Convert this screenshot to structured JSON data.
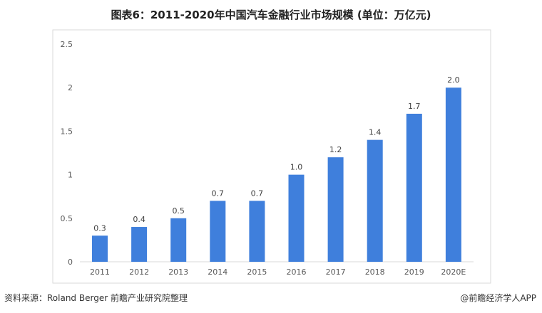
{
  "chart_data": {
    "type": "bar",
    "title": "图表6：2011-2020年中国汽车金融行业市场规模 (单位：万亿元)",
    "categories": [
      "2011",
      "2012",
      "2013",
      "2014",
      "2015",
      "2016",
      "2017",
      "2018",
      "2019",
      "2020E"
    ],
    "values": [
      0.3,
      0.4,
      0.5,
      0.7,
      0.7,
      1.0,
      1.2,
      1.4,
      1.7,
      2.0
    ],
    "data_labels": [
      "0.3",
      "0.4",
      "0.5",
      "0.7",
      "0.7",
      "1.0",
      "1.2",
      "1.4",
      "1.7",
      "2.0"
    ],
    "yticks": [
      "0",
      "0.5",
      "1",
      "1.5",
      "2",
      "2.5"
    ],
    "ylim": [
      0,
      2.5
    ],
    "xlabel": "",
    "ylabel": "",
    "grid": false,
    "bar_color": "#3f7fdc"
  },
  "footer": {
    "source": "资料来源：Roland Berger 前瞻产业研究院整理",
    "brand": "@前瞻经济学人APP"
  },
  "watermark": "前瞻产业研究院"
}
